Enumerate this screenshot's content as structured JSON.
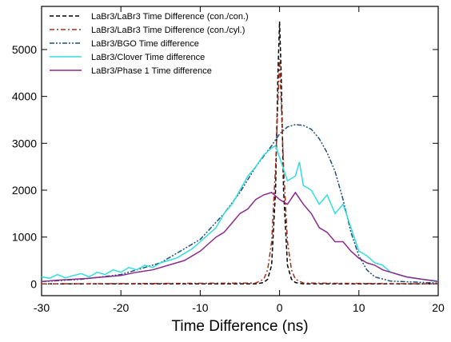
{
  "chart_data": {
    "type": "line",
    "xlabel": "Time Difference (ns)",
    "xlim": [
      -30,
      20
    ],
    "xticks": [
      -30,
      -20,
      -10,
      0,
      10,
      20
    ],
    "ylim": [
      -250,
      5920
    ],
    "yticks": [
      0,
      1000,
      2000,
      3000,
      4000,
      5000
    ],
    "legend": "upper left",
    "series": [
      {
        "name": "LaBr3/LaBr3 Time Difference (con./con.)",
        "color": "#000000",
        "linestyle": "dashed",
        "x": [
          -30,
          -3,
          -2,
          -1.5,
          -1,
          -0.5,
          -0.2,
          0,
          0.2,
          0.5,
          1,
          1.5,
          2,
          3,
          20
        ],
        "values": [
          0,
          0,
          30,
          100,
          400,
          2000,
          4500,
          5600,
          4500,
          2000,
          400,
          100,
          30,
          0,
          0
        ]
      },
      {
        "name": "LaBr3/LaBr3 Time Difference (con./cyl.)",
        "color": "#a0301a",
        "linestyle": "dashdot",
        "x": [
          -30,
          -3,
          -2,
          -1.5,
          -1,
          -0.5,
          0,
          0.5,
          1,
          1.5,
          2,
          3,
          20
        ],
        "values": [
          0,
          20,
          100,
          300,
          900,
          2500,
          4800,
          2500,
          900,
          300,
          100,
          20,
          0
        ]
      },
      {
        "name": "LaBr3/BGO Time difference",
        "color": "#1f4e79",
        "linestyle": "dashdotdot",
        "x": [
          -30,
          -25,
          -20,
          -15,
          -10,
          -7,
          -5,
          -3,
          -1,
          0,
          1,
          2,
          3,
          4,
          5,
          6,
          7,
          8,
          9,
          10,
          11,
          12,
          14,
          20
        ],
        "values": [
          50,
          100,
          200,
          450,
          950,
          1500,
          1950,
          2500,
          2950,
          3200,
          3350,
          3400,
          3380,
          3300,
          3100,
          2800,
          2400,
          1800,
          1100,
          600,
          300,
          150,
          60,
          20
        ]
      },
      {
        "name": "LaBr3/Clover Time difference",
        "color": "#33dddd",
        "linestyle": "solid",
        "x": [
          -30,
          -29,
          -28,
          -27,
          -26,
          -25,
          -24,
          -23,
          -22,
          -21,
          -20,
          -19,
          -18,
          -17,
          -16,
          -15,
          -14,
          -13,
          -12,
          -11,
          -10,
          -9,
          -8,
          -7,
          -6,
          -5,
          -4,
          -3,
          -2,
          -1,
          -0.5,
          0,
          1,
          2,
          2.5,
          3,
          4,
          5,
          6,
          7,
          8,
          9,
          10,
          11,
          12,
          13,
          14,
          15,
          16,
          17,
          18,
          19,
          20
        ],
        "values": [
          150,
          120,
          200,
          130,
          180,
          220,
          150,
          250,
          200,
          300,
          250,
          350,
          300,
          400,
          350,
          450,
          500,
          550,
          650,
          750,
          900,
          1050,
          1200,
          1500,
          1700,
          2000,
          2300,
          2500,
          2750,
          2900,
          2950,
          2700,
          2200,
          2300,
          2600,
          2100,
          2000,
          1700,
          1900,
          1500,
          1700,
          1200,
          700,
          600,
          450,
          400,
          250,
          200,
          150,
          120,
          100,
          80,
          60
        ]
      },
      {
        "name": "LaBr3/Phase 1 Time difference",
        "color": "#8b2a8b",
        "linestyle": "solid",
        "x": [
          -30,
          -28,
          -26,
          -24,
          -22,
          -20,
          -18,
          -16,
          -14,
          -12,
          -10,
          -9,
          -8,
          -7,
          -6,
          -5,
          -4,
          -3,
          -2,
          -1,
          0,
          1,
          2,
          3,
          4,
          5,
          6,
          7,
          8,
          9,
          10,
          11,
          12,
          13,
          14,
          15,
          16,
          18,
          20
        ],
        "values": [
          50,
          80,
          100,
          120,
          150,
          180,
          250,
          300,
          400,
          500,
          700,
          850,
          1000,
          1100,
          1300,
          1500,
          1600,
          1800,
          1900,
          1950,
          1800,
          1700,
          1950,
          1700,
          1500,
          1200,
          1100,
          900,
          900,
          700,
          550,
          450,
          400,
          300,
          250,
          200,
          150,
          100,
          50
        ]
      }
    ]
  }
}
